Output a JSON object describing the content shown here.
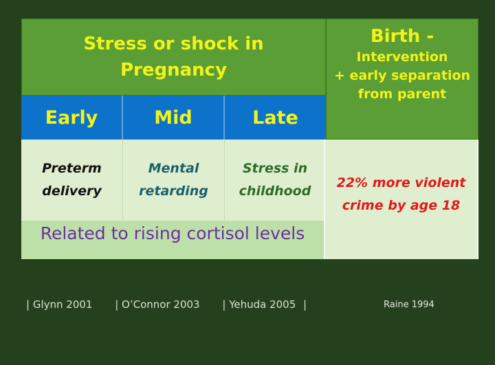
{
  "header": {
    "stress_line1": "Stress or shock in",
    "stress_line2": "Pregnancy",
    "birth_title": "Birth -",
    "birth_line1": "Intervention",
    "birth_line2": "+ early separation",
    "birth_line3": "from parent"
  },
  "columns": {
    "early": "Early",
    "mid": "Mid",
    "late": "Late"
  },
  "outcomes": {
    "early_line1": "Preterm",
    "early_line2": "delivery",
    "mid_line1": "Mental",
    "mid_line2": "retarding",
    "late_line1": "Stress in",
    "late_line2": "childhood",
    "birth_line1": "22% more violent",
    "birth_line2": "crime by age 18"
  },
  "note": "Related to rising cortisol levels",
  "references": {
    "r1": "|  Glynn 2001",
    "r2": "|  O’Connor 2003",
    "r3": "|  Yehuda 2005",
    "r4": "|",
    "raine": "Raine 1994"
  }
}
